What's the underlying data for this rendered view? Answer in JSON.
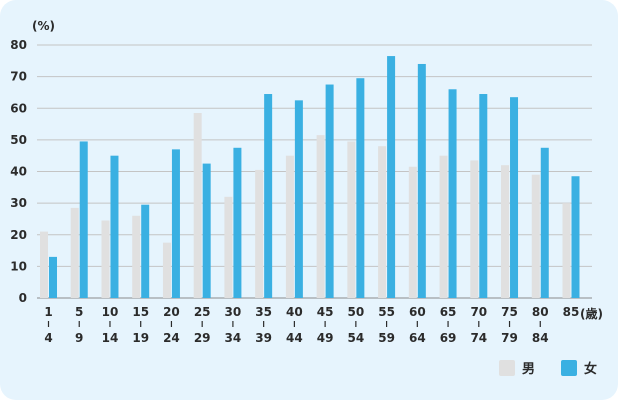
{
  "chart_data": {
    "type": "bar",
    "y_unit": "(%)",
    "x_unit": "(歳)",
    "ylim": [
      0,
      80
    ],
    "yticks": [
      0,
      10,
      20,
      30,
      40,
      50,
      60,
      70,
      80
    ],
    "grid": true,
    "legend_position": "bottom-right",
    "categories": [
      {
        "top": "1",
        "bottom": "4"
      },
      {
        "top": "5",
        "bottom": "9"
      },
      {
        "top": "10",
        "bottom": "14"
      },
      {
        "top": "15",
        "bottom": "19"
      },
      {
        "top": "20",
        "bottom": "24"
      },
      {
        "top": "25",
        "bottom": "29"
      },
      {
        "top": "30",
        "bottom": "34"
      },
      {
        "top": "35",
        "bottom": "39"
      },
      {
        "top": "40",
        "bottom": "44"
      },
      {
        "top": "45",
        "bottom": "49"
      },
      {
        "top": "50",
        "bottom": "54"
      },
      {
        "top": "55",
        "bottom": "59"
      },
      {
        "top": "60",
        "bottom": "64"
      },
      {
        "top": "65",
        "bottom": "69"
      },
      {
        "top": "70",
        "bottom": "74"
      },
      {
        "top": "75",
        "bottom": "79"
      },
      {
        "top": "80",
        "bottom": "84"
      },
      {
        "top": "85",
        "bottom": ""
      }
    ],
    "series": [
      {
        "name": "男",
        "color": "#e0e0e0",
        "values": [
          21,
          28.5,
          24.5,
          26,
          17.5,
          58.5,
          32,
          40.5,
          45,
          51.5,
          49.5,
          48,
          41.5,
          45,
          43.5,
          42,
          39,
          30
        ]
      },
      {
        "name": "女",
        "color": "#3ab0e2",
        "values": [
          13,
          49.5,
          45,
          29.5,
          47,
          42.5,
          47.5,
          64.5,
          62.5,
          67.5,
          69.5,
          76.5,
          74,
          66,
          64.5,
          63.5,
          47.5,
          38.5
        ]
      }
    ]
  }
}
